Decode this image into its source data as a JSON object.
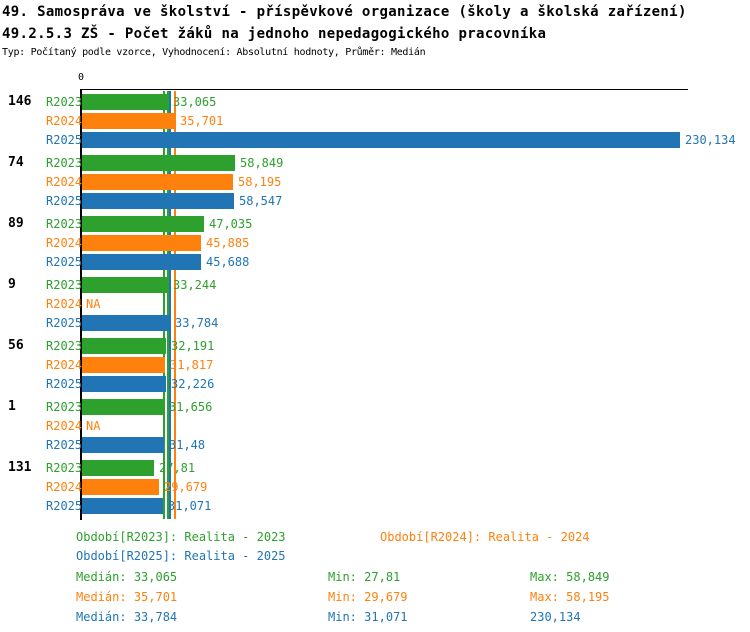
{
  "header": {
    "title_line1": "49. Samospráva ve školství - příspěvkové organizace (školy a školská zařízení)",
    "title_line2": "49.2.5.3 ZŠ - Počet žáků na jednoho nepedagogického pracovníka",
    "meta": "Typ: Počítaný podle vzorce, Vyhodnocení: Absolutní hodnoty, Průměr: Medián"
  },
  "colors": {
    "green": "#2DA02D",
    "orange": "#FF810D",
    "blue": "#2175B5",
    "axis": "#000000"
  },
  "chart_data": {
    "type": "bar",
    "orientation": "horizontal",
    "axis": {
      "zero_label": "0",
      "min": 0,
      "max": 230.134,
      "grid": false
    },
    "series": [
      {
        "id": "R2023",
        "color": "green",
        "legend": "Realita - 2023"
      },
      {
        "id": "R2024",
        "color": "orange",
        "legend": "Realita - 2024"
      },
      {
        "id": "R2025",
        "color": "blue",
        "legend": "Realita - 2025"
      }
    ],
    "groups": [
      {
        "label": "146",
        "values": [
          33.065,
          35.701,
          230.134
        ],
        "displays": [
          "33,065",
          "35,701",
          "230,134"
        ]
      },
      {
        "label": "74",
        "values": [
          58.849,
          58.195,
          58.547
        ],
        "displays": [
          "58,849",
          "58,195",
          "58,547"
        ]
      },
      {
        "label": "89",
        "values": [
          47.035,
          45.885,
          45.688
        ],
        "displays": [
          "47,035",
          "45,885",
          "45,688"
        ]
      },
      {
        "label": "9",
        "values": [
          33.244,
          null,
          33.784
        ],
        "displays": [
          "33,244",
          "NA",
          "33,784"
        ]
      },
      {
        "label": "56",
        "values": [
          32.191,
          31.817,
          32.226
        ],
        "displays": [
          "32,191",
          "31,817",
          "32,226"
        ]
      },
      {
        "label": "1",
        "values": [
          31.656,
          null,
          31.48
        ],
        "displays": [
          "31,656",
          "NA",
          "31,48"
        ]
      },
      {
        "label": "131",
        "values": [
          27.81,
          29.679,
          31.071
        ],
        "displays": [
          "27,81",
          "29,679",
          "31,071"
        ]
      }
    ],
    "median_markers": [
      {
        "color": "green",
        "value": 31.5
      },
      {
        "color": "green",
        "value": 33.065
      },
      {
        "color": "blue",
        "value": 33.784
      },
      {
        "color": "orange",
        "value": 35.701
      }
    ]
  },
  "legend": {
    "r2023": "Období[R2023]: Realita - 2023",
    "r2024": "Období[R2024]: Realita - 2024",
    "r2025": "Období[R2025]: Realita - 2025"
  },
  "stats": {
    "r2023": {
      "median_label": "Medián:",
      "median": "33,065",
      "min_label": "Min:",
      "min": "27,81",
      "max_label": "Max:",
      "max": "58,849"
    },
    "r2024": {
      "median_label": "Medián:",
      "median": "35,701",
      "min_label": "Min:",
      "min": "29,679",
      "max_label": "Max:",
      "max": "58,195"
    },
    "r2025": {
      "median_label": "Medián:",
      "median": "33,784",
      "min_label": "Min:",
      "min": "31,071",
      "max_label": "Max:",
      "max": "230,134"
    }
  }
}
